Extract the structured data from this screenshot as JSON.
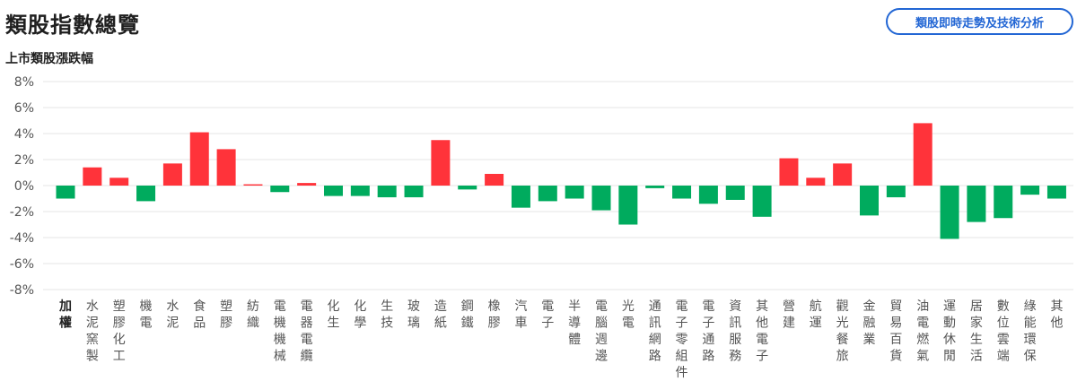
{
  "header": {
    "title": "類股指數總覽",
    "analysis_button_label": "類股即時走勢及技術分析"
  },
  "colors": {
    "up": "#ff333a",
    "down": "#00ab5e",
    "grid": "#e6e6e6",
    "accent": "#2266d4"
  },
  "chart_data": {
    "type": "bar",
    "title": "上市類股漲跌幅",
    "xlabel": "",
    "ylabel": "",
    "ylim": [
      -8,
      8
    ],
    "yticks": [
      "8%",
      "6%",
      "4%",
      "2%",
      "0%",
      "-2%",
      "-4%",
      "-6%",
      "-8%"
    ],
    "grid": true,
    "categories": [
      "加權",
      "水泥窯製",
      "塑膠化工",
      "機電",
      "水泥",
      "食品",
      "塑膠",
      "紡織",
      "電機機械",
      "電器電纜",
      "化生",
      "化學",
      "生技",
      "玻璃",
      "造紙",
      "鋼鐵",
      "橡膠",
      "汽車",
      "電子",
      "半導體",
      "電腦週邊",
      "光電",
      "通訊網路",
      "電子零組件",
      "電子通路",
      "資訊服務",
      "其他電子",
      "營建",
      "航運",
      "觀光餐旅",
      "金融業",
      "貿易百貨",
      "油電燃氣",
      "運動休閒",
      "居家生活",
      "數位雲端",
      "綠能環保",
      "其他"
    ],
    "values": [
      -1.0,
      1.4,
      0.6,
      -1.2,
      1.7,
      4.1,
      2.8,
      0.1,
      -0.5,
      0.2,
      -0.8,
      -0.8,
      -0.9,
      -0.9,
      3.5,
      -0.3,
      0.9,
      -1.7,
      -1.2,
      -1.0,
      -1.9,
      -3.0,
      -0.2,
      -1.0,
      -1.4,
      -1.1,
      -2.4,
      2.1,
      0.6,
      1.7,
      -2.3,
      -0.9,
      4.8,
      -4.1,
      -2.8,
      -2.5,
      -0.7,
      -1.0
    ]
  }
}
